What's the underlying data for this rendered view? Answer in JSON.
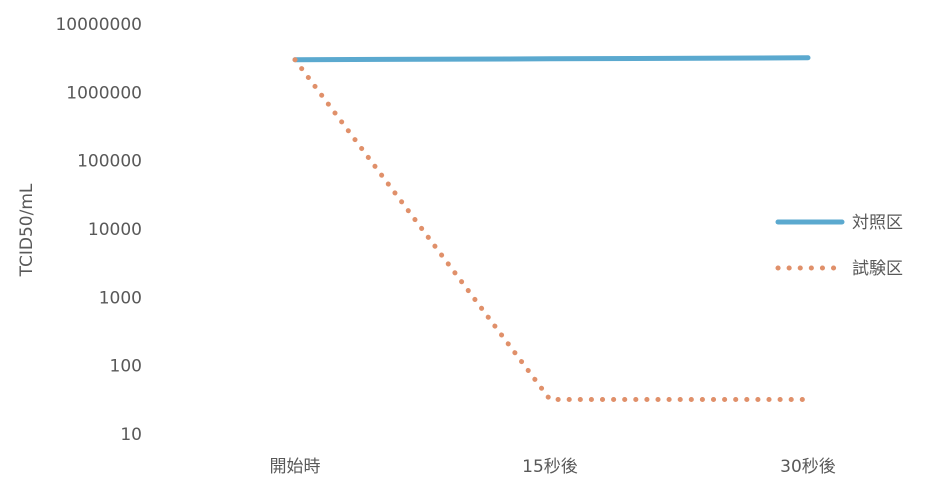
{
  "chart_data": {
    "type": "line",
    "y_scale": "log",
    "ylabel": "TCID50/mL",
    "xlabel": "",
    "categories": [
      "開始時",
      "15秒後",
      "30秒後"
    ],
    "y_ticks": [
      "10",
      "100",
      "1000",
      "10000",
      "100000",
      "1000000",
      "10000000"
    ],
    "ylim": [
      10,
      10000000
    ],
    "grid": false,
    "legend_position": "right",
    "series": [
      {
        "name": "対照区",
        "values": [
          3000000,
          3100000,
          3200000
        ],
        "color": "#5ba9cf",
        "line_style": "solid"
      },
      {
        "name": "試験区",
        "values": [
          3000000,
          32,
          32
        ],
        "color": "#e0906a",
        "line_style": "dotted"
      }
    ]
  }
}
